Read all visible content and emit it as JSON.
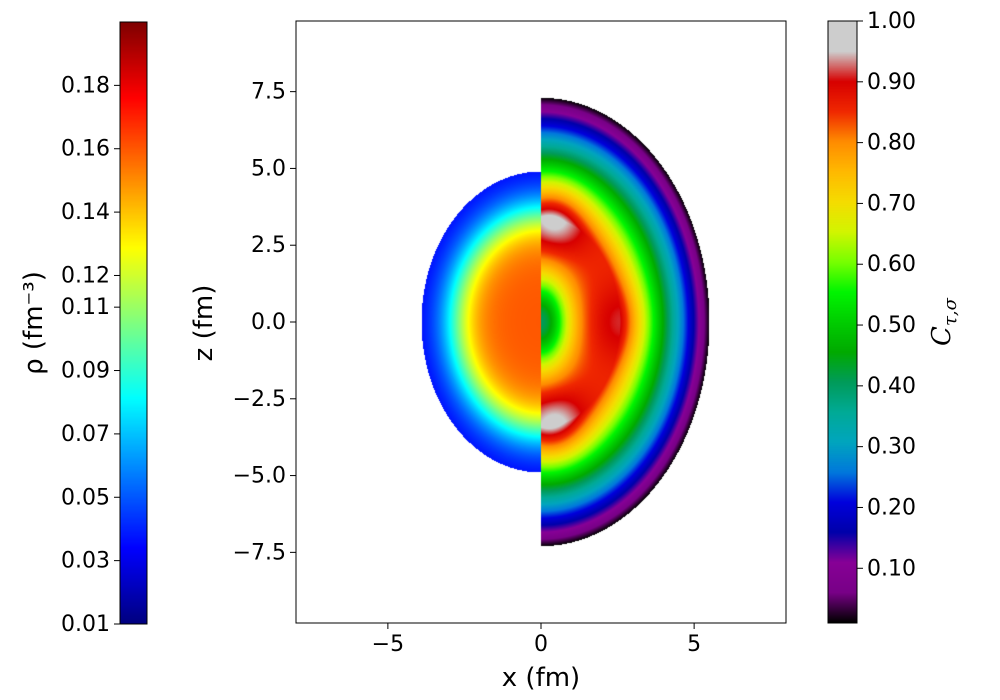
{
  "chart_data": {
    "type": "heatmap",
    "main": {
      "xlabel": "x (fm)",
      "ylabel": "z (fm)",
      "xlim": [
        -8,
        8
      ],
      "ylim": [
        -9.8,
        9.8
      ],
      "xticks": [
        -5,
        0,
        5
      ],
      "yticks": [
        -7.5,
        -5.0,
        -2.5,
        0.0,
        2.5,
        5.0,
        7.5
      ],
      "xtick_labels": [
        "−5",
        "0",
        "5"
      ],
      "ytick_labels": [
        "−7.5",
        "−5.0",
        "−2.5",
        "0.0",
        "2.5",
        "5.0",
        "7.5"
      ],
      "left_half": {
        "field": "rho",
        "colormap": "jet",
        "radius_x": 3.9,
        "radius_z": 4.9,
        "center_value": 0.16,
        "edge_value": 0.03
      },
      "right_half": {
        "field": "C",
        "colormap": "nipy_spectral",
        "radius_x": 5.5,
        "radius_z": 7.3,
        "hotspots_z": [
          3.4,
          -3.4
        ],
        "center_value": 0.35,
        "edge_value": 0.0
      }
    },
    "colorbar_rho": {
      "label": "ρ (fm⁻³)",
      "range": [
        0.01,
        0.2
      ],
      "ticks": [
        0.01,
        0.03,
        0.05,
        0.07,
        0.09,
        0.11,
        0.12,
        0.14,
        0.16,
        0.18
      ],
      "tick_labels": [
        "0.01",
        "0.03",
        "0.05",
        "0.07",
        "0.09",
        "0.11",
        "0.12",
        "0.14",
        "0.16",
        "0.18"
      ],
      "colormap": "jet"
    },
    "colorbar_C": {
      "label": "Cτ,σ",
      "range": [
        0.01,
        1.0
      ],
      "ticks": [
        0.1,
        0.2,
        0.3,
        0.4,
        0.5,
        0.6,
        0.7,
        0.8,
        0.9,
        1.0
      ],
      "tick_labels": [
        "0.10",
        "0.20",
        "0.30",
        "0.40",
        "0.50",
        "0.60",
        "0.70",
        "0.80",
        "0.90",
        "1.00"
      ],
      "colormap": "nipy_spectral"
    }
  }
}
